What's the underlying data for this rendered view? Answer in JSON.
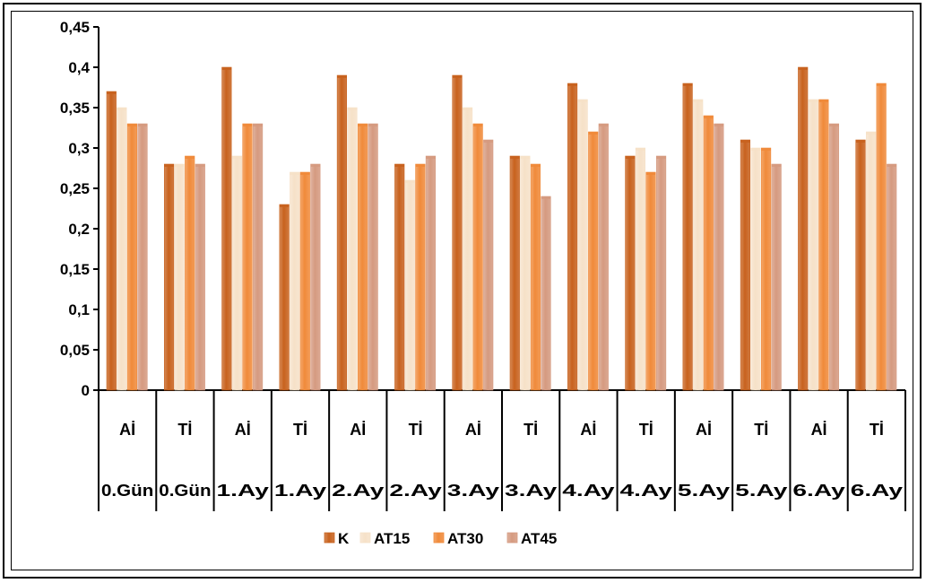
{
  "chart_data": {
    "type": "bar",
    "title": "",
    "xlabel": "",
    "ylabel": "",
    "ylim": [
      0,
      0.45
    ],
    "y_ticks": [
      "0",
      "0,05",
      "0,1",
      "0,15",
      "0,2",
      "0,25",
      "0,3",
      "0,35",
      "0,4",
      "0,45"
    ],
    "grid": false,
    "legend_position": "bottom",
    "categories": [
      {
        "line1": "Aİ",
        "line2": "0.Gün"
      },
      {
        "line1": "Tİ",
        "line2": "0.Gün"
      },
      {
        "line1": "Aİ",
        "line2": "1.Ay"
      },
      {
        "line1": "Tİ",
        "line2": "1.Ay"
      },
      {
        "line1": "Aİ",
        "line2": "2.Ay"
      },
      {
        "line1": "Tİ",
        "line2": "2.Ay"
      },
      {
        "line1": "Aİ",
        "line2": "3.Ay"
      },
      {
        "line1": "Tİ",
        "line2": "3.Ay"
      },
      {
        "line1": "Aİ",
        "line2": "4.Ay"
      },
      {
        "line1": "Tİ",
        "line2": "4.Ay"
      },
      {
        "line1": "Aİ",
        "line2": "5.Ay"
      },
      {
        "line1": "Tİ",
        "line2": "5.Ay"
      },
      {
        "line1": "Aİ",
        "line2": "6.Ay"
      },
      {
        "line1": "Tİ",
        "line2": "6.Ay"
      }
    ],
    "series": [
      {
        "name": "K",
        "color": "#C8621E",
        "values": [
          0.37,
          0.28,
          0.4,
          0.23,
          0.39,
          0.28,
          0.39,
          0.29,
          0.38,
          0.29,
          0.38,
          0.31,
          0.4,
          0.31
        ]
      },
      {
        "name": "AT15",
        "color": "#F6E1C8",
        "values": [
          0.35,
          0.28,
          0.29,
          0.27,
          0.35,
          0.26,
          0.35,
          0.29,
          0.36,
          0.3,
          0.36,
          0.3,
          0.36,
          0.32
        ]
      },
      {
        "name": "AT30",
        "color": "#F08A3A",
        "values": [
          0.33,
          0.29,
          0.33,
          0.27,
          0.33,
          0.28,
          0.33,
          0.28,
          0.32,
          0.27,
          0.34,
          0.3,
          0.36,
          0.38
        ]
      },
      {
        "name": "AT45",
        "color": "#D59A80",
        "values": [
          0.33,
          0.28,
          0.33,
          0.28,
          0.33,
          0.29,
          0.31,
          0.24,
          0.33,
          0.29,
          0.33,
          0.28,
          0.33,
          0.28
        ]
      }
    ]
  }
}
